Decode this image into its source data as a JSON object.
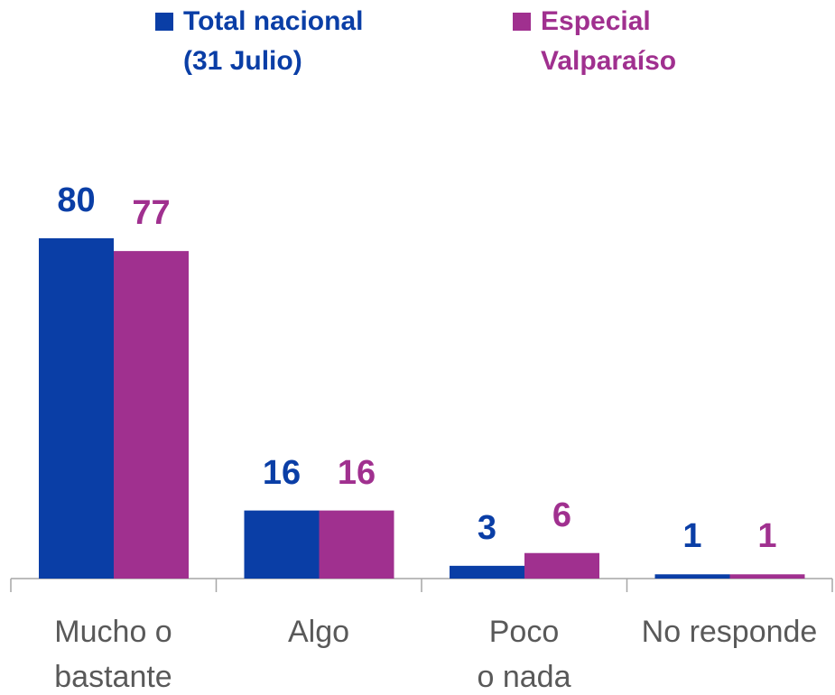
{
  "chart_data": {
    "type": "bar",
    "categories": [
      "Mucho o\nbastante",
      "Algo",
      "Poco\no nada",
      "No responde"
    ],
    "series": [
      {
        "name": "Total nacional\n(31 Julio)",
        "color": "#0a3ea6",
        "values": [
          80,
          16,
          3,
          1
        ]
      },
      {
        "name": "Especial\nValparaíso",
        "color": "#a0308f",
        "values": [
          77,
          16,
          6,
          1
        ]
      }
    ]
  }
}
